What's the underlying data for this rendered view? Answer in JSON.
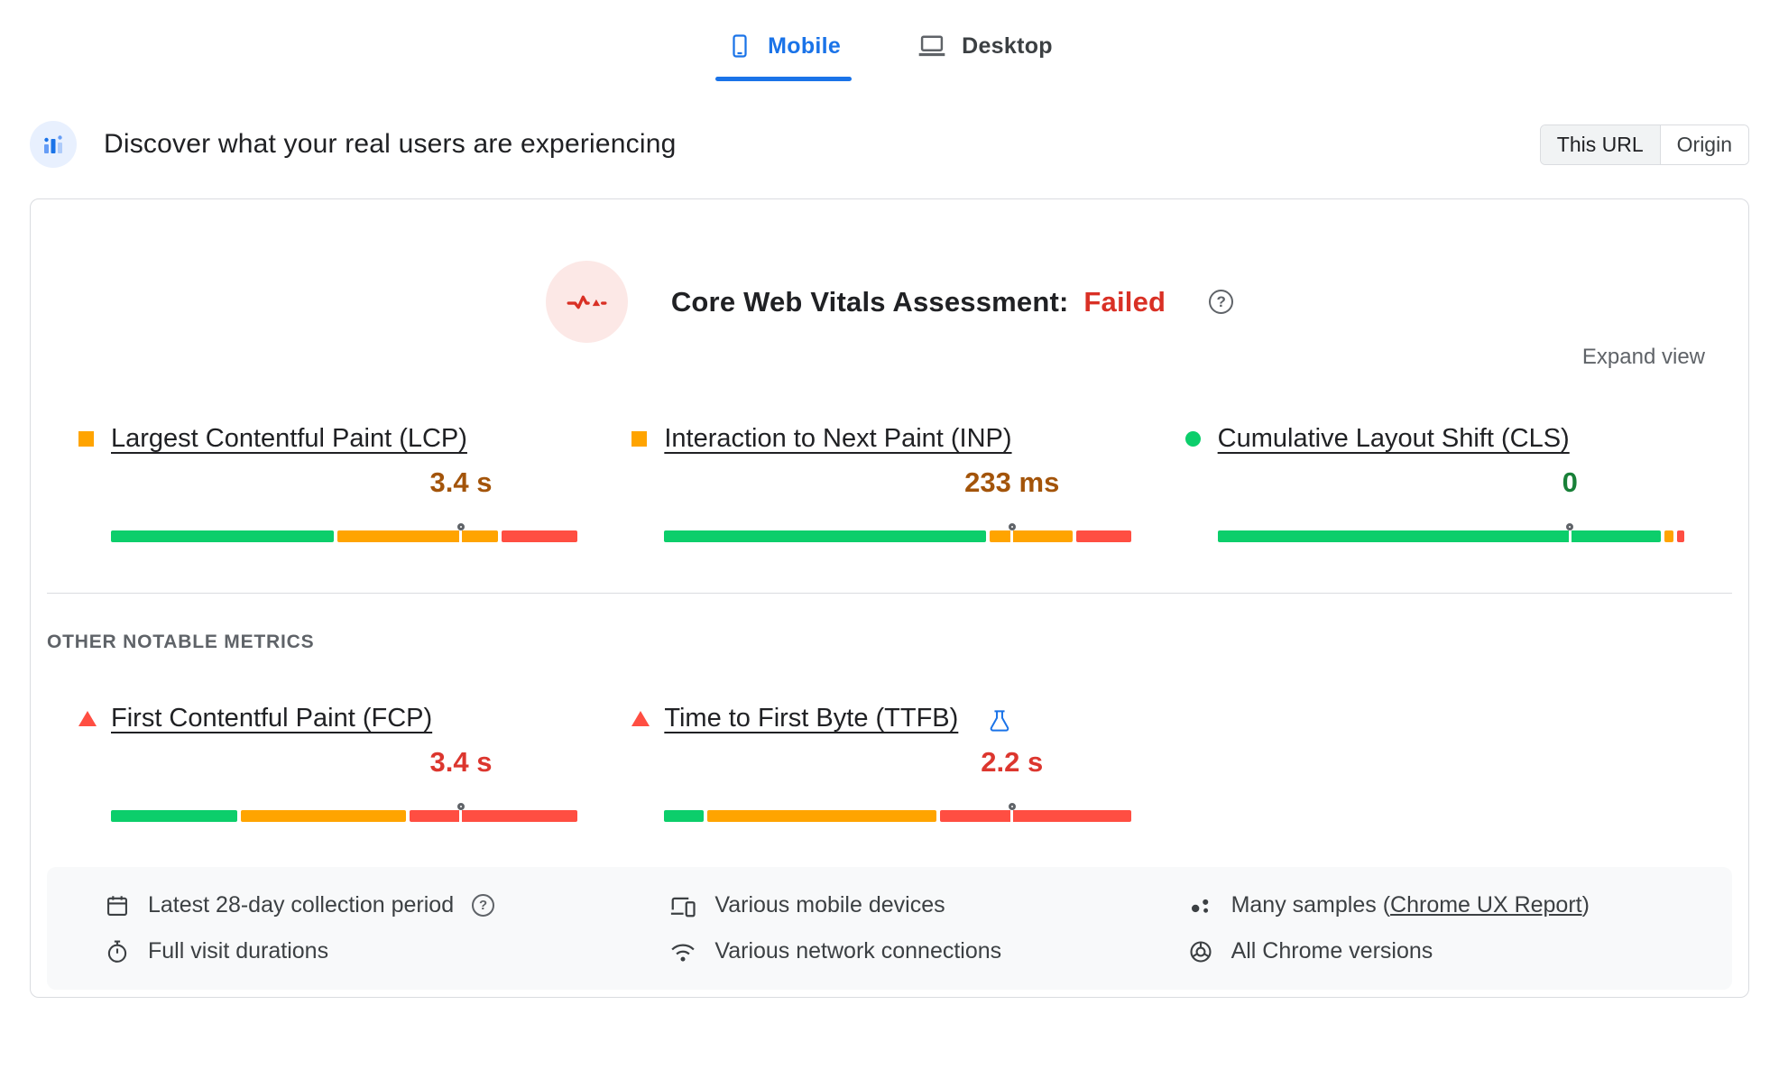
{
  "tabs": {
    "mobile": {
      "label": "Mobile"
    },
    "desktop": {
      "label": "Desktop"
    }
  },
  "field_header": {
    "title": "Discover what your real users are experiencing",
    "scope": {
      "this_url": "This URL",
      "origin": "Origin"
    }
  },
  "assessment": {
    "title": "Core Web Vitals Assessment:",
    "status": "Failed",
    "expand_label": "Expand view"
  },
  "sections": {
    "other_metrics_label": "OTHER NOTABLE METRICS"
  },
  "metrics": {
    "core": [
      {
        "name": "Largest Contentful Paint (LCP)",
        "indicator": "square-orange",
        "value": "3.4 s",
        "value_color": "#a3540a",
        "p75_percent": 75,
        "distribution": {
          "good": 48.5,
          "needs_improvement": 35,
          "poor": 16.5
        }
      },
      {
        "name": "Interaction to Next Paint (INP)",
        "indicator": "square-orange",
        "value": "233 ms",
        "value_color": "#a3540a",
        "p75_percent": 74.5,
        "distribution": {
          "good": 70,
          "needs_improvement": 18,
          "poor": 12
        }
      },
      {
        "name": "Cumulative Layout Shift (CLS)",
        "indicator": "circle-green",
        "value": "0",
        "value_color": "#188038",
        "p75_percent": 75.5,
        "distribution": {
          "good": 96.5,
          "needs_improvement": 2,
          "poor": 1.5
        }
      }
    ],
    "other": [
      {
        "name": "First Contentful Paint (FCP)",
        "indicator": "triangle-red",
        "value": "3.4 s",
        "value_color": "#dc362e",
        "p75_percent": 75,
        "distribution": {
          "good": 27.5,
          "needs_improvement": 36,
          "poor": 36.5
        }
      },
      {
        "name": "Time to First Byte (TTFB)",
        "indicator": "triangle-red",
        "value": "2.2 s",
        "value_color": "#dc362e",
        "p75_percent": 74.5,
        "experimental": true,
        "distribution": {
          "good": 8.5,
          "needs_improvement": 50,
          "poor": 41.5
        }
      }
    ]
  },
  "bar_colors": {
    "good": "#0cce6b",
    "needs_improvement": "#ffa400",
    "poor": "#ff4e42"
  },
  "icons": {
    "help": "?"
  },
  "footer": {
    "collection_period": "Latest 28-day collection period",
    "visit_durations": "Full visit durations",
    "devices": "Various mobile devices",
    "network": "Various network connections",
    "samples_prefix": "Many samples (",
    "samples_link": "Chrome UX Report",
    "samples_suffix": ")",
    "chrome_versions": "All Chrome versions"
  }
}
